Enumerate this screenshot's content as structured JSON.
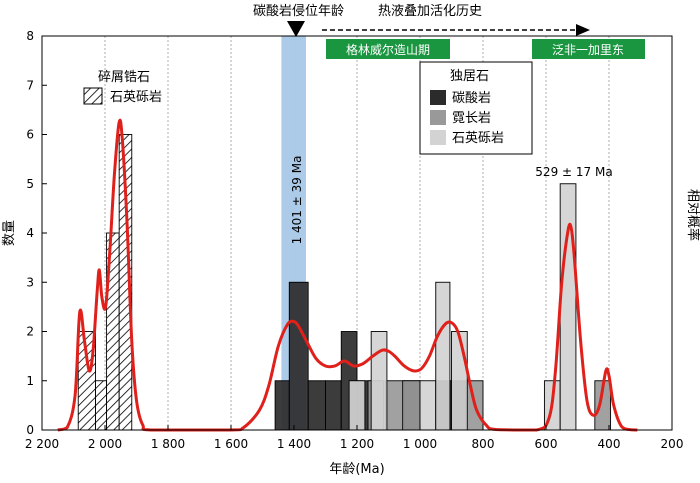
{
  "chart_data": {
    "type": "bar",
    "x_label": "年龄(Ma)",
    "y_label_left": "数量",
    "y_label_right": "相对概率",
    "x_ticks": [
      2200,
      2000,
      1800,
      1600,
      1400,
      1200,
      1000,
      800,
      600,
      400,
      200
    ],
    "x_tick_labels": [
      "2 200",
      "2 000",
      "1 800",
      "1 600",
      "1 400",
      "1 200",
      "1 000",
      "800",
      "600",
      "400",
      "200"
    ],
    "y_ticks": [
      0,
      1,
      2,
      3,
      4,
      5,
      6,
      7,
      8
    ],
    "xlim": [
      2200,
      200
    ],
    "ylim": [
      0,
      8
    ],
    "x_reversed": true,
    "grid": "vertical dotted",
    "top_annotations": {
      "intrusion_label": "碳酸岩侵位年龄",
      "hydrothermal_label": "热液叠加活化历史"
    },
    "event_bands": [
      {
        "label": "格林威尔造山期",
        "color": "#1a9641"
      },
      {
        "label": "泛非一加里东",
        "color": "#1a9641"
      }
    ],
    "highlight": {
      "label": "1 401 ± 39 Ma",
      "from": 1440,
      "to": 1362,
      "color": "#a8c8e8"
    },
    "peak_label": {
      "text": "529 ± 17 Ma",
      "x": 529,
      "y": 5
    },
    "legend_detrital": {
      "title": "碎屑锆石",
      "items": [
        {
          "label": "石英砾岩",
          "pattern": "hatch"
        }
      ]
    },
    "legend_monazite": {
      "title": "独居石",
      "items": [
        {
          "label": "碳酸岩",
          "color": "#2b2b2b"
        },
        {
          "label": "霓长岩",
          "color": "#999999"
        },
        {
          "label": "石英砾岩",
          "color": "#d3d3d3"
        }
      ]
    },
    "series": [
      {
        "name": "石英砾岩",
        "group": "detrital",
        "pattern": "hatch",
        "bars": [
          {
            "from": 2085,
            "to": 2030,
            "count": 2
          },
          {
            "from": 2030,
            "to": 1995,
            "count": 1
          },
          {
            "from": 1995,
            "to": 1955,
            "count": 4
          },
          {
            "from": 1955,
            "to": 1915,
            "count": 6
          }
        ]
      },
      {
        "name": "碳酸岩",
        "group": "monazite",
        "color": "#2b2b2b",
        "bars": [
          {
            "from": 1460,
            "to": 1415,
            "count": 1
          },
          {
            "from": 1415,
            "to": 1355,
            "count": 3
          },
          {
            "from": 1355,
            "to": 1300,
            "count": 1
          },
          {
            "from": 1300,
            "to": 1250,
            "count": 1
          },
          {
            "from": 1250,
            "to": 1200,
            "count": 2
          },
          {
            "from": 1200,
            "to": 1155,
            "count": 1
          },
          {
            "from": 1050,
            "to": 1000,
            "count": 1
          },
          {
            "from": 950,
            "to": 905,
            "count": 1
          },
          {
            "from": 905,
            "to": 855,
            "count": 1
          }
        ]
      },
      {
        "name": "霓长岩",
        "group": "monazite",
        "color": "#999999",
        "bars": [
          {
            "from": 1165,
            "to": 1115,
            "count": 1
          },
          {
            "from": 1110,
            "to": 1050,
            "count": 1
          },
          {
            "from": 1055,
            "to": 1000,
            "count": 1
          },
          {
            "from": 855,
            "to": 800,
            "count": 1
          },
          {
            "from": 445,
            "to": 395,
            "count": 1
          }
        ]
      },
      {
        "name": "石英砾岩",
        "group": "monazite",
        "color": "#d3d3d3",
        "bars": [
          {
            "from": 1225,
            "to": 1175,
            "count": 1
          },
          {
            "from": 1155,
            "to": 1105,
            "count": 2
          },
          {
            "from": 1000,
            "to": 950,
            "count": 1
          },
          {
            "from": 950,
            "to": 905,
            "count": 3
          },
          {
            "from": 900,
            "to": 850,
            "count": 2
          },
          {
            "from": 605,
            "to": 555,
            "count": 1
          },
          {
            "from": 555,
            "to": 505,
            "count": 5
          }
        ]
      }
    ],
    "probability_curve": {
      "color": "#e0201b",
      "points": [
        [
          2150,
          0
        ],
        [
          2120,
          0.05
        ],
        [
          2095,
          0.7
        ],
        [
          2080,
          2.4
        ],
        [
          2065,
          1.8
        ],
        [
          2050,
          1.2
        ],
        [
          2038,
          1.6
        ],
        [
          2025,
          2.8
        ],
        [
          2018,
          3.25
        ],
        [
          2010,
          2.7
        ],
        [
          1998,
          2.5
        ],
        [
          1985,
          3.6
        ],
        [
          1970,
          5.2
        ],
        [
          1955,
          6.25
        ],
        [
          1945,
          5.9
        ],
        [
          1930,
          4.2
        ],
        [
          1915,
          1.8
        ],
        [
          1900,
          0.6
        ],
        [
          1880,
          0.1
        ],
        [
          1850,
          0
        ],
        [
          1600,
          0
        ],
        [
          1560,
          0.05
        ],
        [
          1510,
          0.4
        ],
        [
          1480,
          0.9
        ],
        [
          1450,
          1.7
        ],
        [
          1420,
          2.15
        ],
        [
          1400,
          2.2
        ],
        [
          1385,
          2.1
        ],
        [
          1360,
          1.8
        ],
        [
          1330,
          1.45
        ],
        [
          1300,
          1.3
        ],
        [
          1270,
          1.3
        ],
        [
          1240,
          1.4
        ],
        [
          1210,
          1.3
        ],
        [
          1180,
          1.35
        ],
        [
          1150,
          1.5
        ],
        [
          1120,
          1.62
        ],
        [
          1100,
          1.6
        ],
        [
          1080,
          1.5
        ],
        [
          1050,
          1.3
        ],
        [
          1020,
          1.2
        ],
        [
          995,
          1.25
        ],
        [
          970,
          1.5
        ],
        [
          945,
          1.9
        ],
        [
          920,
          2.15
        ],
        [
          900,
          2.18
        ],
        [
          880,
          2.0
        ],
        [
          860,
          1.5
        ],
        [
          840,
          0.9
        ],
        [
          820,
          0.4
        ],
        [
          790,
          0.1
        ],
        [
          760,
          0.01
        ],
        [
          630,
          0
        ],
        [
          590,
          0.25
        ],
        [
          570,
          1.2
        ],
        [
          550,
          3.0
        ],
        [
          530,
          4.05
        ],
        [
          520,
          4.1
        ],
        [
          510,
          3.5
        ],
        [
          490,
          1.8
        ],
        [
          470,
          0.6
        ],
        [
          450,
          0.3
        ],
        [
          430,
          0.5
        ],
        [
          410,
          1.2
        ],
        [
          400,
          1.1
        ],
        [
          385,
          0.5
        ],
        [
          360,
          0.07
        ],
        [
          330,
          0.005
        ],
        [
          310,
          0
        ]
      ]
    }
  }
}
